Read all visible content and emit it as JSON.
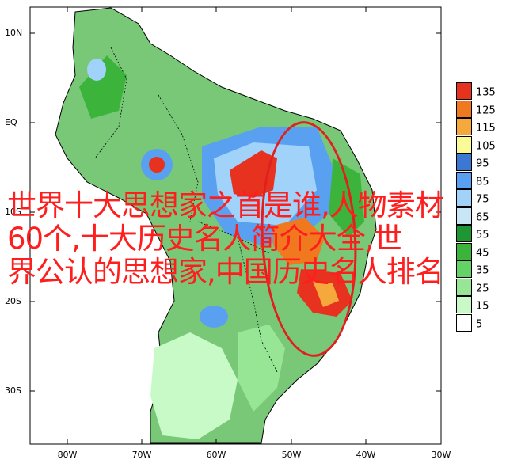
{
  "map": {
    "lat_labels": [
      "10N",
      "EQ",
      "10S",
      "20S",
      "30S"
    ],
    "lon_labels": [
      "80W",
      "70W",
      "60W",
      "50W",
      "40W",
      "30W"
    ]
  },
  "legend": {
    "values": [
      "135",
      "125",
      "115",
      "105",
      "95",
      "85",
      "75",
      "65",
      "55",
      "45",
      "35",
      "25",
      "15",
      "5"
    ],
    "colors": [
      "#e6321e",
      "#f0781e",
      "#f5a83c",
      "#fafa96",
      "#3c78d2",
      "#5aa0f0",
      "#a0d2fa",
      "#c8e6f5",
      "#1e9632",
      "#3cb43c",
      "#64d264",
      "#96e696",
      "#c8fac8",
      "#ffffff"
    ]
  },
  "overlay": {
    "line1": "世界十大思想家之首是谁,人物素材",
    "line2": "60个,十大历史名人简介大全,世",
    "line3": "界公认的思想家,中国历史名人排名"
  },
  "colors": {
    "overlay_text": "#ff1e1e",
    "highlight_ellipse": "#e21f1f",
    "land_green": "#78c878",
    "ocean": "#ffffff"
  }
}
